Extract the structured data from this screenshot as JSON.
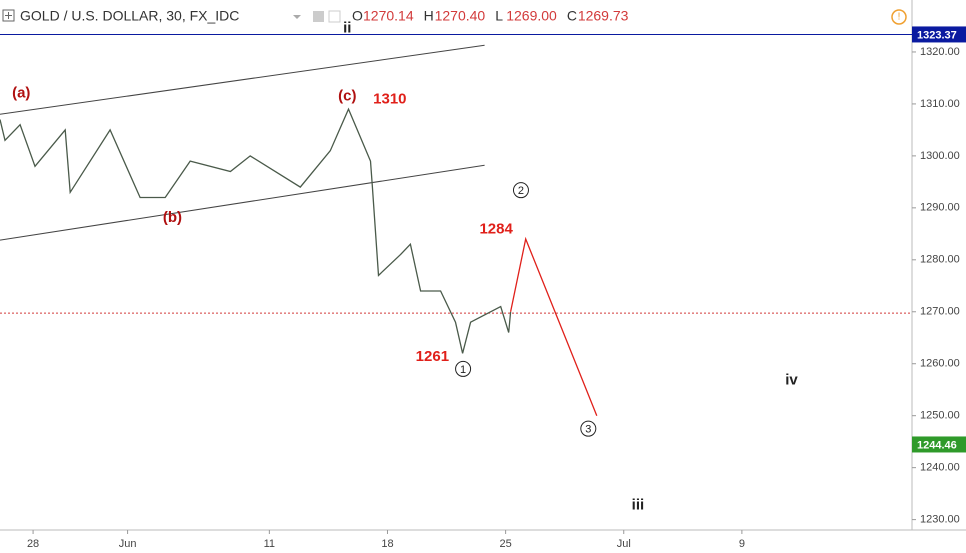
{
  "chart_data": {
    "type": "line",
    "title": "GOLD / U.S. DOLLAR, 30, FX_IDC",
    "ohlc": [
      {
        "key": "O",
        "text": "1270.14"
      },
      {
        "key": "H",
        "text": "1270.40"
      },
      {
        "key": "L",
        "text": "1269.00"
      },
      {
        "key": "C",
        "text": "1269.73"
      }
    ],
    "x": [
      -1.4,
      -1.19,
      -0.55,
      0.08,
      1.36,
      1.57,
      3.26,
      4.53,
      5.59,
      6.65,
      8.35,
      9.19,
      11.31,
      12.58,
      13.35,
      14.28,
      14.36,
      14.62,
      15.55,
      15.97,
      16.4,
      17.25,
      17.88,
      18.18,
      18.52,
      19.79,
      20.13,
      20.21
    ],
    "values": [
      1307,
      1303,
      1306,
      1298,
      1305,
      1293,
      1305,
      1292,
      1292,
      1299,
      1297,
      1300,
      1294,
      1301,
      1309,
      1299,
      1294,
      1277,
      1281,
      1283,
      1274,
      1274,
      1268,
      1262,
      1268,
      1271,
      1266,
      1270
    ],
    "color": "#4a5a4a",
    "projection": {
      "x": [
        20.21,
        20.85,
        23.86
      ],
      "values": [
        1270,
        1284,
        1250
      ],
      "color": "#e0201a"
    },
    "trendlines": [
      {
        "x": [
          -1.4,
          19.11
        ],
        "values": [
          1308,
          1321.3
        ]
      },
      {
        "x": [
          -1.4,
          19.11
        ],
        "values": [
          1283.8,
          1298.2
        ]
      }
    ],
    "price_lines": [
      {
        "value": 1323.37,
        "label": "1323.37",
        "color": "#0a1aa0",
        "line": "solid"
      },
      {
        "value": 1269.73,
        "label": null,
        "color": "#d23a3a",
        "line": "dotted"
      },
      {
        "value": 1244.46,
        "label": "1244.46",
        "color": "#2f9a2a",
        "line": "none"
      }
    ],
    "annotations": [
      {
        "text": "(a)",
        "x": -0.5,
        "y": 1312,
        "color": "#b01010"
      },
      {
        "text": "ii",
        "x": 13.3,
        "y": 1324.5,
        "color": "#222"
      },
      {
        "text": "(c)",
        "x": 13.3,
        "y": 1311.4,
        "color": "#b01010"
      },
      {
        "text": "1310",
        "x": 15.1,
        "y": 1310.8,
        "color": "#e0201a"
      },
      {
        "text": "(b)",
        "x": 5.9,
        "y": 1288,
        "color": "#b01010"
      },
      {
        "text": "1284",
        "x": 19.6,
        "y": 1285.8,
        "color": "#e0201a"
      },
      {
        "text": "1261",
        "x": 16.9,
        "y": 1261.3,
        "color": "#e0201a"
      },
      {
        "text": "iv",
        "x": 32.1,
        "y": 1256.8,
        "color": "#222"
      },
      {
        "text": "iii",
        "x": 25.6,
        "y": 1232.7,
        "color": "#222"
      }
    ],
    "wave_marks": [
      {
        "text": "1",
        "x": 18.2,
        "y": 1259
      },
      {
        "text": "2",
        "x": 20.65,
        "y": 1293.4
      },
      {
        "text": "3",
        "x": 23.5,
        "y": 1247.5
      }
    ],
    "xlim": [
      -1.4,
      37.2
    ],
    "ylim": [
      1228,
      1330
    ],
    "xticks": [
      {
        "value": 0,
        "label": "28"
      },
      {
        "value": 4,
        "label": "Jun"
      },
      {
        "value": 10,
        "label": "11"
      },
      {
        "value": 15,
        "label": "18"
      },
      {
        "value": 20,
        "label": "25"
      },
      {
        "value": 25,
        "label": "Jul"
      },
      {
        "value": 30,
        "label": "9"
      }
    ],
    "yticks": [
      {
        "value": 1230,
        "label": "1230.00"
      },
      {
        "value": 1240,
        "label": "1240.00"
      },
      {
        "value": 1250,
        "label": "1250.00"
      },
      {
        "value": 1260,
        "label": "1260.00"
      },
      {
        "value": 1270,
        "label": "1270.00"
      },
      {
        "value": 1280,
        "label": "1280.00"
      },
      {
        "value": 1290,
        "label": "1290.00"
      },
      {
        "value": 1300,
        "label": "1300.00"
      },
      {
        "value": 1310,
        "label": "1310.00"
      },
      {
        "value": 1320,
        "label": "1320.00"
      }
    ],
    "grid": false
  }
}
